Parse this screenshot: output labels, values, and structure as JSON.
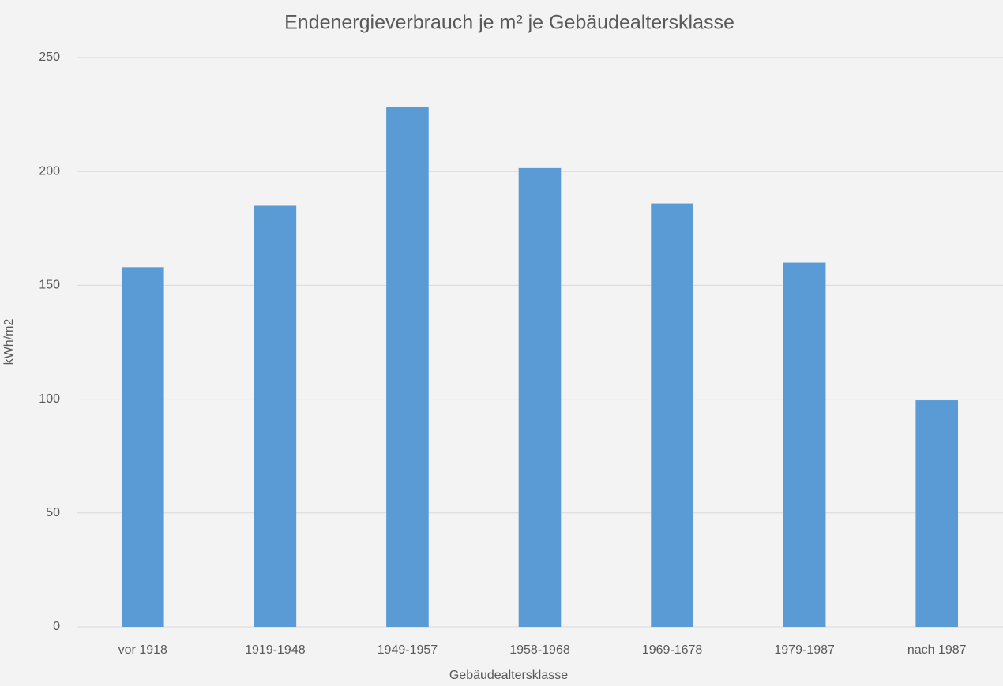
{
  "chart_data": {
    "type": "bar",
    "title": "Endenergieverbrauch je m² je Gebäudealtersklasse",
    "x_label": "Gebäudealtersklasse",
    "y_label": "kWh/m2",
    "categories": [
      "vor 1918",
      "1919-1948",
      "1949-1957",
      "1958-1968",
      "1969-1678",
      "1979-1987",
      "nach 1987"
    ],
    "values": [
      158,
      185,
      228.5,
      201.5,
      186,
      160,
      99.5
    ],
    "color": "#5b9bd5",
    "ylim": [
      0,
      250
    ],
    "yticks": [
      0,
      50,
      100,
      150,
      200,
      250
    ],
    "grid": true
  }
}
